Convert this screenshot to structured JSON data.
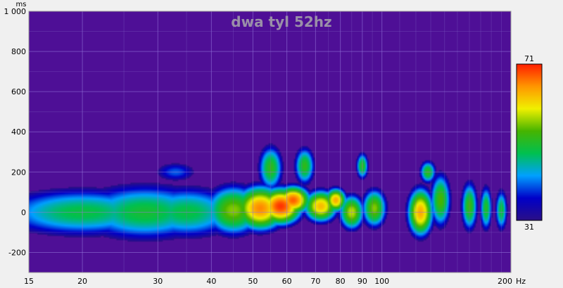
{
  "chart_data": {
    "type": "heatmap",
    "title": "dwa tyl 52hz",
    "xlabel": "",
    "ylabel": "",
    "x_unit": "Hz",
    "y_unit": "ms",
    "x_scale": "log",
    "xlim": [
      15,
      200
    ],
    "ylim": [
      -300,
      1000
    ],
    "x_ticks": [
      15,
      20,
      30,
      40,
      50,
      60,
      70,
      80,
      90,
      100,
      200
    ],
    "x_tick_labels": [
      "15",
      "20",
      "30",
      "40",
      "50",
      "60",
      "70",
      "80",
      "90",
      "100",
      "200"
    ],
    "y_ticks": [
      1000,
      800,
      600,
      400,
      200,
      0,
      -200
    ],
    "y_tick_labels": [
      "1 000",
      "800",
      "600",
      "400",
      "200",
      "0",
      "-200"
    ],
    "grid": true,
    "colorbar": {
      "min": 31,
      "max": 71,
      "min_label": "31",
      "max_label": "71",
      "placement": "right",
      "colors": [
        "#2a0f86",
        "#0000c8",
        "#00a0ff",
        "#00c050",
        "#46b400",
        "#f0f000",
        "#ff9600",
        "#ff1e00"
      ]
    },
    "background_color": "#4e0f96",
    "blobs": [
      {
        "x": 20,
        "y": 0,
        "rx": 0.22,
        "ry": 130,
        "v": 49
      },
      {
        "x": 28,
        "y": 0,
        "rx": 0.18,
        "ry": 150,
        "v": 50
      },
      {
        "x": 35,
        "y": 0,
        "rx": 0.14,
        "ry": 140,
        "v": 49
      },
      {
        "x": 45,
        "y": 10,
        "rx": 0.07,
        "ry": 130,
        "v": 56
      },
      {
        "x": 52,
        "y": 20,
        "rx": 0.06,
        "ry": 110,
        "v": 66
      },
      {
        "x": 58,
        "y": 30,
        "rx": 0.05,
        "ry": 90,
        "v": 70
      },
      {
        "x": 62,
        "y": 60,
        "rx": 0.04,
        "ry": 70,
        "v": 68
      },
      {
        "x": 55,
        "y": 220,
        "rx": 0.03,
        "ry": 120,
        "v": 52
      },
      {
        "x": 66,
        "y": 230,
        "rx": 0.025,
        "ry": 100,
        "v": 52
      },
      {
        "x": 72,
        "y": 30,
        "rx": 0.04,
        "ry": 80,
        "v": 63
      },
      {
        "x": 78,
        "y": 60,
        "rx": 0.025,
        "ry": 60,
        "v": 64
      },
      {
        "x": 85,
        "y": 0,
        "rx": 0.03,
        "ry": 90,
        "v": 58
      },
      {
        "x": 90,
        "y": 230,
        "rx": 0.015,
        "ry": 70,
        "v": 52
      },
      {
        "x": 96,
        "y": 20,
        "rx": 0.03,
        "ry": 100,
        "v": 56
      },
      {
        "x": 33,
        "y": 200,
        "rx": 0.06,
        "ry": 60,
        "v": 40
      },
      {
        "x": 123,
        "y": 0,
        "rx": 0.03,
        "ry": 120,
        "v": 64
      },
      {
        "x": 128,
        "y": 200,
        "rx": 0.02,
        "ry": 60,
        "v": 52
      },
      {
        "x": 137,
        "y": 60,
        "rx": 0.025,
        "ry": 140,
        "v": 54
      },
      {
        "x": 160,
        "y": 30,
        "rx": 0.02,
        "ry": 130,
        "v": 53
      },
      {
        "x": 175,
        "y": 20,
        "rx": 0.015,
        "ry": 120,
        "v": 51
      },
      {
        "x": 190,
        "y": 10,
        "rx": 0.015,
        "ry": 110,
        "v": 50
      }
    ]
  }
}
